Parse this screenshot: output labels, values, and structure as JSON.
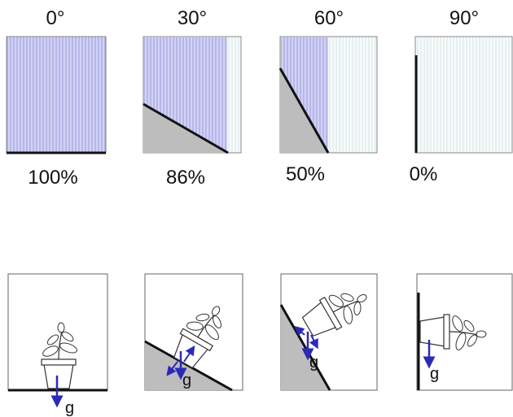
{
  "panels": [
    {
      "angle": "0°",
      "percent": "100%",
      "gravity": "g"
    },
    {
      "angle": "30°",
      "percent": "86%",
      "gravity": "g"
    },
    {
      "angle": "60°",
      "percent": "50%",
      "gravity": "g"
    },
    {
      "angle": "90°",
      "percent": "0%",
      "gravity": "g"
    }
  ]
}
